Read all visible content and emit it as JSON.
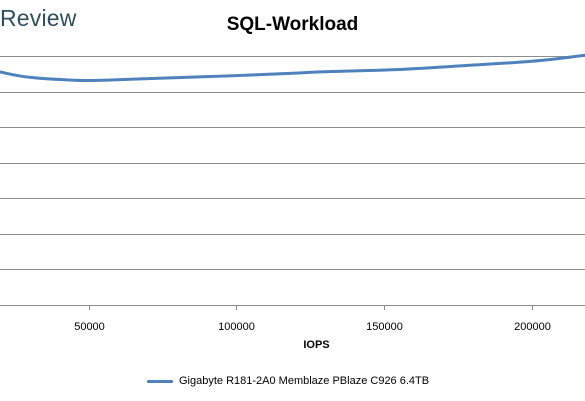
{
  "brand": {
    "text": "Review"
  },
  "chart_data": {
    "type": "line",
    "title": "SQL-Workload",
    "xlabel": "IOPS",
    "ylabel": "",
    "x_ticks": [
      50000,
      100000,
      150000,
      200000
    ],
    "xlim": [
      20000,
      218000
    ],
    "ylim": [
      0,
      7
    ],
    "y_gridlines": [
      0,
      1,
      2,
      3,
      4,
      5,
      6,
      7
    ],
    "y_tick_labels_visible": false,
    "grid": true,
    "legend_position": "bottom",
    "series": [
      {
        "name": "Gigabyte R181-2A0 Memblaze PBlaze C926 6.4TB",
        "color": "#4f81bd",
        "x": [
          20000,
          30000,
          45000,
          55000,
          75000,
          100000,
          120000,
          130000,
          155000,
          175000,
          200000,
          218000
        ],
        "y": [
          6.55,
          6.4,
          6.32,
          6.32,
          6.38,
          6.45,
          6.52,
          6.56,
          6.62,
          6.72,
          6.85,
          7.02
        ]
      }
    ]
  }
}
